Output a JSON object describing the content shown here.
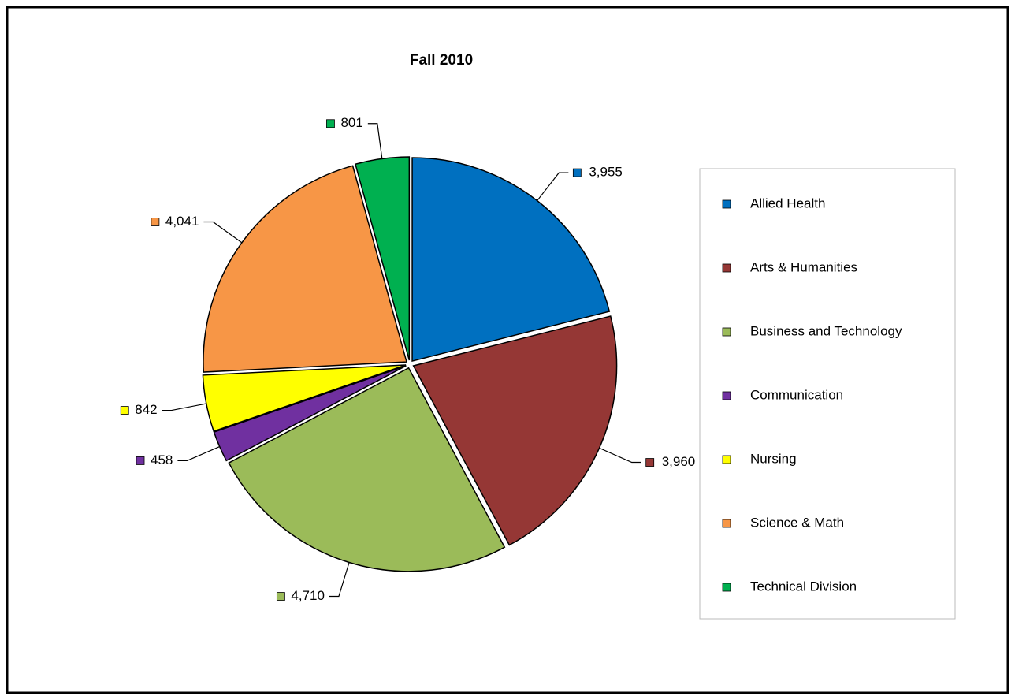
{
  "chart_data": {
    "type": "pie",
    "title": "Fall 2010",
    "categories": [
      "Allied Health",
      "Arts & Humanities",
      "Business and Technology",
      "Communication",
      "Nursing",
      "Science & Math",
      "Technical Division"
    ],
    "values": [
      3955,
      3960,
      4710,
      458,
      842,
      4041,
      801
    ],
    "value_labels": [
      "3,955",
      "3,960",
      "4,710",
      "458",
      "842",
      "4,041",
      "801"
    ],
    "colors": [
      "#0070c0",
      "#953735",
      "#9bbb59",
      "#7030a0",
      "#ffff00",
      "#f79646",
      "#00b050"
    ],
    "legend": "right"
  }
}
